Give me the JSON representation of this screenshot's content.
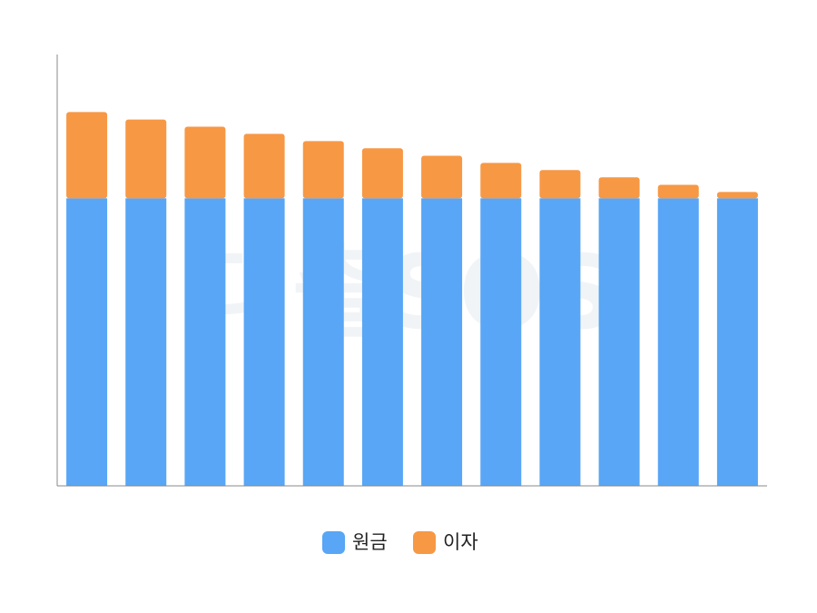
{
  "chart_data": {
    "type": "stacked-bar",
    "watermark": "대출SOS",
    "categories": [
      null,
      null,
      null,
      null,
      null,
      null,
      null,
      null,
      null,
      null,
      null,
      null
    ],
    "series": [
      {
        "name": "원금",
        "color": "#58a6f5",
        "values": [
          100,
          100,
          100,
          100,
          100,
          100,
          100,
          100,
          100,
          100,
          100,
          100
        ]
      },
      {
        "name": "이자",
        "color": "#f79845",
        "values": [
          30,
          27.4,
          24.9,
          22.4,
          19.9,
          17.4,
          14.8,
          12.3,
          9.8,
          7.3,
          4.7,
          2.2
        ]
      }
    ],
    "ylim": [
      0,
      150
    ],
    "legend": "bottom"
  }
}
